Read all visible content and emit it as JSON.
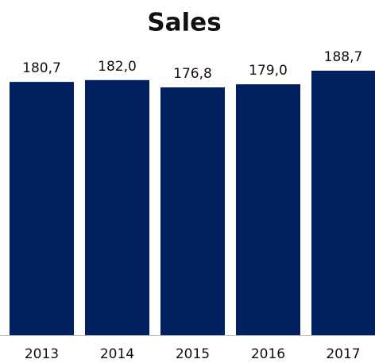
{
  "chart_data": {
    "type": "bar",
    "title": "Sales",
    "categories": [
      "2013",
      "2014",
      "2015",
      "2016",
      "2017"
    ],
    "values": [
      180.7,
      182.0,
      176.8,
      179.0,
      188.7
    ],
    "value_labels": [
      "180,7",
      "182,0",
      "176,8",
      "179,0",
      "188,7"
    ],
    "color": "#002060"
  }
}
